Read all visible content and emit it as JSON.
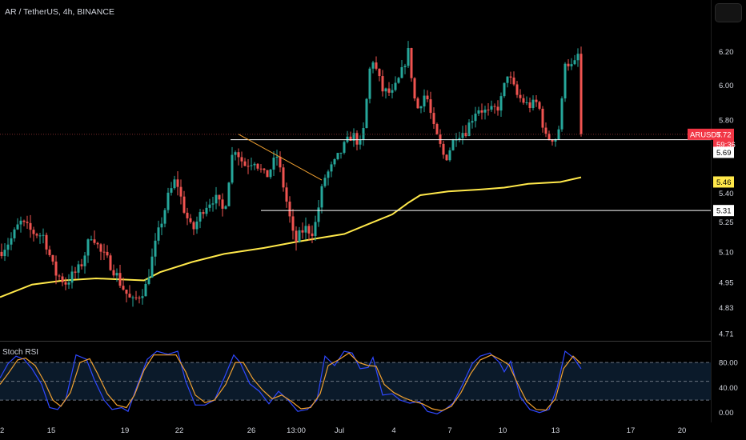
{
  "header": {
    "title": "AR / TetherUS, 4h, BINANCE"
  },
  "rsi_panel": {
    "label": "Stoch RSI"
  },
  "colors": {
    "background": "#000000",
    "up": "#26a69a",
    "down": "#ef5350",
    "ma": "#ffe84a",
    "trendline": "#f0a030",
    "horizontal_line": "#ffffff",
    "rsi_k": "#2f48ff",
    "rsi_d": "#f0a030",
    "price_tag": "#f23645"
  },
  "icons": {
    "top_right_button": "layout-toggle-icon"
  },
  "chart_data": [
    {
      "type": "candlestick",
      "symbol": "ARUSDT",
      "interval": "4h",
      "exchange": "BINANCE",
      "y_axis": {
        "scale": "log",
        "ticks": [
          "6.20",
          "6.00",
          "5.80",
          "5.40",
          "5.25",
          "5.10",
          "4.95",
          "4.83",
          "4.71"
        ],
        "tick_values": [
          6.2,
          6.0,
          5.8,
          5.4,
          5.25,
          5.1,
          4.95,
          4.83,
          4.71
        ],
        "range": [
          4.68,
          6.33
        ]
      },
      "x_axis": {
        "ticks": [
          "2",
          "15",
          "19",
          "22",
          "26",
          "13:00",
          "Jul",
          "4",
          "7",
          "10",
          "13",
          "17",
          "20"
        ],
        "tick_index": [
          0,
          64,
          156,
          224,
          314,
          370,
          424,
          492,
          562,
          628,
          694,
          788,
          852
        ],
        "last_index": 726
      },
      "price_tags": [
        {
          "label": "ARUSDT",
          "value": "5.72",
          "countdown": "59:36"
        },
        {
          "value": "5.69"
        },
        {
          "value": "5.46"
        },
        {
          "value": "5.31"
        }
      ],
      "horizontal_lines": [
        5.69,
        5.31
      ],
      "trendline": {
        "from": [
          298,
          5.72
        ],
        "to": [
          402,
          5.47
        ]
      },
      "moving_average": [
        [
          0,
          4.88
        ],
        [
          40,
          4.94
        ],
        [
          80,
          4.96
        ],
        [
          120,
          4.97
        ],
        [
          180,
          4.96
        ],
        [
          200,
          5.0
        ],
        [
          240,
          5.05
        ],
        [
          280,
          5.09
        ],
        [
          330,
          5.12
        ],
        [
          370,
          5.15
        ],
        [
          400,
          5.17
        ],
        [
          430,
          5.19
        ],
        [
          460,
          5.24
        ],
        [
          490,
          5.29
        ],
        [
          510,
          5.35
        ],
        [
          525,
          5.39
        ],
        [
          560,
          5.41
        ],
        [
          600,
          5.42
        ],
        [
          630,
          5.43
        ],
        [
          660,
          5.45
        ],
        [
          700,
          5.46
        ],
        [
          726,
          5.485
        ]
      ],
      "close_path": [
        [
          0,
          5.1
        ],
        [
          15,
          5.17
        ],
        [
          25,
          5.25
        ],
        [
          40,
          5.2
        ],
        [
          55,
          5.18
        ],
        [
          68,
          5.0
        ],
        [
          82,
          4.95
        ],
        [
          100,
          5.02
        ],
        [
          115,
          5.2
        ],
        [
          125,
          5.1
        ],
        [
          140,
          5.03
        ],
        [
          150,
          4.95
        ],
        [
          165,
          4.85
        ],
        [
          182,
          4.93
        ],
        [
          195,
          5.15
        ],
        [
          210,
          5.38
        ],
        [
          220,
          5.48
        ],
        [
          228,
          5.34
        ],
        [
          240,
          5.2
        ],
        [
          255,
          5.33
        ],
        [
          268,
          5.38
        ],
        [
          280,
          5.3
        ],
        [
          292,
          5.66
        ],
        [
          305,
          5.55
        ],
        [
          318,
          5.58
        ],
        [
          332,
          5.48
        ],
        [
          346,
          5.6
        ],
        [
          356,
          5.4
        ],
        [
          368,
          5.14
        ],
        [
          380,
          5.22
        ],
        [
          392,
          5.2
        ],
        [
          405,
          5.48
        ],
        [
          418,
          5.56
        ],
        [
          428,
          5.64
        ],
        [
          440,
          5.72
        ],
        [
          452,
          5.65
        ],
        [
          464,
          6.18
        ],
        [
          478,
          5.97
        ],
        [
          490,
          5.95
        ],
        [
          500,
          6.05
        ],
        [
          510,
          6.2
        ],
        [
          520,
          5.85
        ],
        [
          532,
          5.96
        ],
        [
          542,
          5.75
        ],
        [
          556,
          5.58
        ],
        [
          570,
          5.72
        ],
        [
          582,
          5.74
        ],
        [
          596,
          5.87
        ],
        [
          610,
          5.84
        ],
        [
          624,
          5.88
        ],
        [
          634,
          6.07
        ],
        [
          646,
          5.94
        ],
        [
          660,
          5.88
        ],
        [
          672,
          5.9
        ],
        [
          682,
          5.7
        ],
        [
          694,
          5.7
        ],
        [
          700,
          5.78
        ],
        [
          706,
          6.15
        ],
        [
          716,
          6.1
        ],
        [
          722,
          6.18
        ],
        [
          726,
          5.72
        ]
      ]
    },
    {
      "type": "line",
      "title": "Stoch RSI",
      "y_axis": {
        "ticks": [
          "80.00",
          "40.00",
          "0.00"
        ],
        "tick_values": [
          80,
          40,
          0
        ],
        "range": [
          -8,
          112
        ]
      },
      "bands": [
        80,
        50,
        20
      ],
      "series": [
        {
          "name": "K",
          "values": [
            [
              0,
              55
            ],
            [
              10,
              78
            ],
            [
              20,
              90
            ],
            [
              30,
              85
            ],
            [
              40,
              70
            ],
            [
              52,
              45
            ],
            [
              62,
              8
            ],
            [
              72,
              5
            ],
            [
              82,
              20
            ],
            [
              95,
              92
            ],
            [
              108,
              85
            ],
            [
              118,
              52
            ],
            [
              130,
              20
            ],
            [
              140,
              5
            ],
            [
              152,
              8
            ],
            [
              160,
              2
            ],
            [
              172,
              45
            ],
            [
              184,
              85
            ],
            [
              196,
              98
            ],
            [
              210,
              93
            ],
            [
              222,
              98
            ],
            [
              232,
              50
            ],
            [
              244,
              12
            ],
            [
              256,
              12
            ],
            [
              268,
              20
            ],
            [
              280,
              55
            ],
            [
              292,
              92
            ],
            [
              300,
              80
            ],
            [
              312,
              46
            ],
            [
              324,
              34
            ],
            [
              336,
              14
            ],
            [
              348,
              34
            ],
            [
              360,
              20
            ],
            [
              372,
              2
            ],
            [
              384,
              5
            ],
            [
              396,
              20
            ],
            [
              406,
              90
            ],
            [
              418,
              75
            ],
            [
              430,
              98
            ],
            [
              440,
              95
            ],
            [
              450,
              70
            ],
            [
              460,
              72
            ],
            [
              466,
              88
            ],
            [
              478,
              28
            ],
            [
              490,
              30
            ],
            [
              500,
              20
            ],
            [
              512,
              15
            ],
            [
              524,
              18
            ],
            [
              534,
              2
            ],
            [
              546,
              -2
            ],
            [
              556,
              5
            ],
            [
              566,
              15
            ],
            [
              578,
              45
            ],
            [
              590,
              78
            ],
            [
              600,
              90
            ],
            [
              612,
              95
            ],
            [
              624,
              80
            ],
            [
              630,
              65
            ],
            [
              638,
              82
            ],
            [
              650,
              25
            ],
            [
              662,
              5
            ],
            [
              674,
              0
            ],
            [
              686,
              5
            ],
            [
              696,
              40
            ],
            [
              706,
              98
            ],
            [
              716,
              88
            ],
            [
              726,
              70
            ]
          ]
        },
        {
          "name": "D",
          "values": [
            [
              0,
              45
            ],
            [
              10,
              62
            ],
            [
              22,
              84
            ],
            [
              32,
              87
            ],
            [
              44,
              75
            ],
            [
              56,
              48
            ],
            [
              66,
              20
            ],
            [
              76,
              10
            ],
            [
              88,
              32
            ],
            [
              100,
              80
            ],
            [
              112,
              86
            ],
            [
              122,
              62
            ],
            [
              134,
              30
            ],
            [
              146,
              12
            ],
            [
              158,
              8
            ],
            [
              168,
              28
            ],
            [
              180,
              68
            ],
            [
              192,
              92
            ],
            [
              206,
              92
            ],
            [
              220,
              92
            ],
            [
              232,
              65
            ],
            [
              244,
              28
            ],
            [
              256,
              16
            ],
            [
              268,
              20
            ],
            [
              282,
              45
            ],
            [
              294,
              80
            ],
            [
              304,
              80
            ],
            [
              316,
              54
            ],
            [
              328,
              36
            ],
            [
              340,
              22
            ],
            [
              352,
              28
            ],
            [
              364,
              18
            ],
            [
              376,
              6
            ],
            [
              388,
              8
            ],
            [
              400,
              30
            ],
            [
              410,
              75
            ],
            [
              424,
              85
            ],
            [
              436,
              95
            ],
            [
              448,
              80
            ],
            [
              460,
              75
            ],
            [
              470,
              74
            ],
            [
              480,
              45
            ],
            [
              492,
              32
            ],
            [
              504,
              24
            ],
            [
              516,
              18
            ],
            [
              528,
              14
            ],
            [
              540,
              6
            ],
            [
              552,
              3
            ],
            [
              564,
              10
            ],
            [
              576,
              32
            ],
            [
              588,
              62
            ],
            [
              600,
              84
            ],
            [
              614,
              92
            ],
            [
              626,
              84
            ],
            [
              636,
              76
            ],
            [
              646,
              48
            ],
            [
              658,
              18
            ],
            [
              670,
              5
            ],
            [
              682,
              4
            ],
            [
              694,
              22
            ],
            [
              704,
              70
            ],
            [
              716,
              90
            ],
            [
              726,
              78
            ]
          ]
        }
      ]
    }
  ]
}
